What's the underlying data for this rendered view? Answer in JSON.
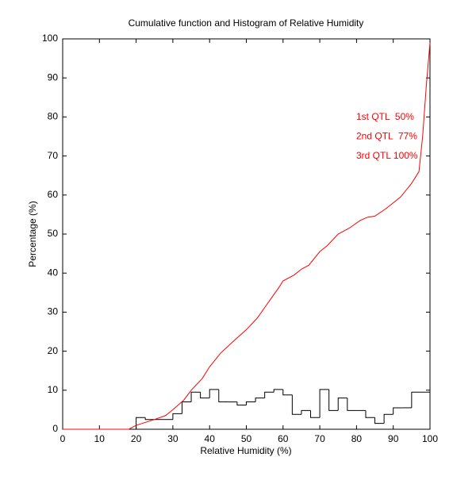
{
  "chart_data": {
    "type": "line",
    "title": "Cumulative function and Histogram of Relative Humidity",
    "xlabel": "Relative Humidity (%)",
    "ylabel": "Percentage (%)",
    "xlim": [
      0,
      100
    ],
    "ylim": [
      0,
      100
    ],
    "xticks": [
      0,
      10,
      20,
      30,
      40,
      50,
      60,
      70,
      80,
      90,
      100
    ],
    "yticks": [
      0,
      10,
      20,
      30,
      40,
      50,
      60,
      70,
      80,
      90,
      100
    ],
    "annotations": [
      "1st QTL  50%",
      "2nd QTL  77%",
      "3rd QTL 100%"
    ],
    "annotation_color": "#ff0000",
    "line": {
      "color": "#ff0000",
      "x": [
        0,
        18,
        20,
        25,
        28,
        30,
        33,
        35,
        38,
        40,
        43,
        47,
        50,
        53,
        56,
        59,
        60,
        63,
        65,
        67,
        70,
        72,
        75,
        78,
        81,
        83,
        85,
        88,
        92,
        95,
        97,
        98,
        99,
        100
      ],
      "values": [
        0,
        0,
        1,
        2.5,
        3.5,
        5,
        7.5,
        10,
        13,
        16,
        19.5,
        23,
        25.5,
        28.5,
        32.5,
        36.5,
        38,
        39.5,
        41,
        42,
        45.5,
        47,
        50,
        51.5,
        53.5,
        54.3,
        54.6,
        56.5,
        59.5,
        63,
        66,
        75,
        88,
        99
      ]
    },
    "histogram": {
      "color": "#000000",
      "bins": [
        20,
        22.5,
        25,
        27.5,
        30,
        32.5,
        35,
        37.5,
        40,
        42.5,
        45,
        47.5,
        50,
        52.5,
        55,
        57.5,
        60,
        62.5,
        65,
        67.5,
        70,
        72.5,
        75,
        77.5,
        80,
        82.5,
        85,
        87.5,
        90,
        92.5,
        95,
        97.5,
        100
      ],
      "counts": [
        3,
        2.5,
        2.5,
        2.5,
        4,
        7,
        9.5,
        8,
        10.2,
        7,
        7,
        6.2,
        7,
        8,
        9.5,
        10.2,
        8.8,
        3.8,
        4.8,
        3,
        10.2,
        4.8,
        8,
        4.8,
        4.8,
        3,
        1.5,
        3.8,
        5.5,
        5.5,
        9.5,
        9.5
      ]
    }
  }
}
